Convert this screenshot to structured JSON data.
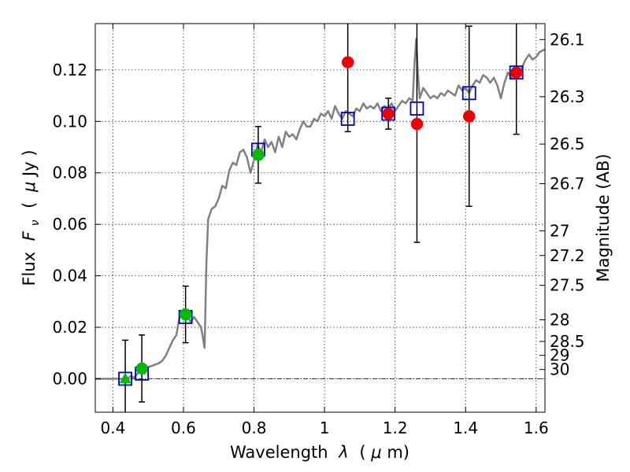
{
  "chart_data": {
    "type": "scatter",
    "xlabel_parts": [
      "Wavelength",
      "λ",
      "(",
      "μ",
      "m)"
    ],
    "ylabel_parts": [
      "Flux",
      "F",
      "ν",
      "(",
      "μ",
      "Jy )"
    ],
    "y2label": "Magnitude (AB)",
    "xlim": [
      0.35,
      1.625
    ],
    "ylim": [
      -0.013,
      0.138
    ],
    "grid": true,
    "x_ticks": [
      {
        "value": 0.4,
        "label": "0.4"
      },
      {
        "value": 0.6,
        "label": "0.6"
      },
      {
        "value": 0.8,
        "label": "0.8"
      },
      {
        "value": 1.0,
        "label": "1"
      },
      {
        "value": 1.2,
        "label": "1.2"
      },
      {
        "value": 1.4,
        "label": "1.4"
      },
      {
        "value": 1.6,
        "label": "1.6"
      }
    ],
    "y_ticks": [
      {
        "value": 0.0,
        "label": "0.00"
      },
      {
        "value": 0.02,
        "label": "0.02"
      },
      {
        "value": 0.04,
        "label": "0.04"
      },
      {
        "value": 0.06,
        "label": "0.06"
      },
      {
        "value": 0.08,
        "label": "0.08"
      },
      {
        "value": 0.1,
        "label": "0.10"
      },
      {
        "value": 0.12,
        "label": "0.12"
      }
    ],
    "mag_ticks": [
      {
        "flux": 0.1318,
        "label": "26.1"
      },
      {
        "flux": 0.1096,
        "label": "26.3"
      },
      {
        "flux": 0.0912,
        "label": "26.5"
      },
      {
        "flux": 0.0758,
        "label": "26.7"
      },
      {
        "flux": 0.0575,
        "label": "27"
      },
      {
        "flux": 0.0479,
        "label": "27.2"
      },
      {
        "flux": 0.0363,
        "label": "27.5"
      },
      {
        "flux": 0.0229,
        "label": "28"
      },
      {
        "flux": 0.0145,
        "label": "28.5"
      },
      {
        "flux": 0.0091,
        "label": "29"
      },
      {
        "flux": 0.0036,
        "label": "30"
      }
    ],
    "sed_model": {
      "name": "model SED",
      "color": "#808080",
      "points": [
        [
          0.35,
          0.0
        ],
        [
          0.44,
          0.0
        ],
        [
          0.45,
          0.001
        ],
        [
          0.46,
          0.0005
        ],
        [
          0.47,
          0.002
        ],
        [
          0.48,
          0.0035
        ],
        [
          0.49,
          0.002
        ],
        [
          0.5,
          0.0045
        ],
        [
          0.51,
          0.005
        ],
        [
          0.52,
          0.0055
        ],
        [
          0.53,
          0.006
        ],
        [
          0.54,
          0.007
        ],
        [
          0.55,
          0.009
        ],
        [
          0.56,
          0.012
        ],
        [
          0.57,
          0.015
        ],
        [
          0.58,
          0.017
        ],
        [
          0.59,
          0.025
        ],
        [
          0.6,
          0.024
        ],
        [
          0.61,
          0.026
        ],
        [
          0.62,
          0.022
        ],
        [
          0.63,
          0.024
        ],
        [
          0.64,
          0.022
        ],
        [
          0.65,
          0.02
        ],
        [
          0.655,
          0.016
        ],
        [
          0.66,
          0.012
        ],
        [
          0.665,
          0.045
        ],
        [
          0.67,
          0.062
        ],
        [
          0.68,
          0.066
        ],
        [
          0.69,
          0.067
        ],
        [
          0.7,
          0.07
        ],
        [
          0.71,
          0.075
        ],
        [
          0.72,
          0.074
        ],
        [
          0.73,
          0.081
        ],
        [
          0.74,
          0.084
        ],
        [
          0.75,
          0.083
        ],
        [
          0.76,
          0.088
        ],
        [
          0.77,
          0.089
        ],
        [
          0.78,
          0.086
        ],
        [
          0.79,
          0.08
        ],
        [
          0.8,
          0.085
        ],
        [
          0.81,
          0.091
        ],
        [
          0.82,
          0.088
        ],
        [
          0.83,
          0.093
        ],
        [
          0.84,
          0.09
        ],
        [
          0.85,
          0.092
        ],
        [
          0.86,
          0.088
        ],
        [
          0.87,
          0.094
        ],
        [
          0.88,
          0.09
        ],
        [
          0.89,
          0.096
        ],
        [
          0.9,
          0.094
        ],
        [
          0.91,
          0.095
        ],
        [
          0.92,
          0.093
        ],
        [
          0.93,
          0.097
        ],
        [
          0.94,
          0.1
        ],
        [
          0.95,
          0.098
        ],
        [
          0.96,
          0.098
        ],
        [
          0.97,
          0.101
        ],
        [
          0.98,
          0.1
        ],
        [
          0.99,
          0.103
        ],
        [
          1.0,
          0.102
        ],
        [
          1.01,
          0.104
        ],
        [
          1.02,
          0.101
        ],
        [
          1.03,
          0.106
        ],
        [
          1.04,
          0.103
        ],
        [
          1.05,
          0.101
        ],
        [
          1.06,
          0.104
        ],
        [
          1.07,
          0.103
        ],
        [
          1.08,
          0.102
        ],
        [
          1.09,
          0.105
        ],
        [
          1.1,
          0.104
        ],
        [
          1.11,
          0.107
        ],
        [
          1.12,
          0.105
        ],
        [
          1.13,
          0.106
        ],
        [
          1.14,
          0.105
        ],
        [
          1.15,
          0.107
        ],
        [
          1.16,
          0.104
        ],
        [
          1.17,
          0.106
        ],
        [
          1.18,
          0.105
        ],
        [
          1.19,
          0.107
        ],
        [
          1.2,
          0.104
        ],
        [
          1.21,
          0.106
        ],
        [
          1.22,
          0.108
        ],
        [
          1.23,
          0.107
        ],
        [
          1.24,
          0.109
        ],
        [
          1.25,
          0.108
        ],
        [
          1.255,
          0.122
        ],
        [
          1.26,
          0.132
        ],
        [
          1.265,
          0.118
        ],
        [
          1.27,
          0.109
        ],
        [
          1.28,
          0.113
        ],
        [
          1.29,
          0.111
        ],
        [
          1.3,
          0.109
        ],
        [
          1.31,
          0.11
        ],
        [
          1.32,
          0.109
        ],
        [
          1.33,
          0.111
        ],
        [
          1.34,
          0.11
        ],
        [
          1.35,
          0.112
        ],
        [
          1.36,
          0.111
        ],
        [
          1.37,
          0.11
        ],
        [
          1.38,
          0.114
        ],
        [
          1.39,
          0.112
        ],
        [
          1.4,
          0.113
        ],
        [
          1.41,
          0.111
        ],
        [
          1.42,
          0.114
        ],
        [
          1.43,
          0.116
        ],
        [
          1.44,
          0.115
        ],
        [
          1.45,
          0.118
        ],
        [
          1.46,
          0.117
        ],
        [
          1.47,
          0.115
        ],
        [
          1.48,
          0.117
        ],
        [
          1.49,
          0.114
        ],
        [
          1.5,
          0.109
        ],
        [
          1.51,
          0.115
        ],
        [
          1.52,
          0.119
        ],
        [
          1.53,
          0.117
        ],
        [
          1.54,
          0.119
        ],
        [
          1.55,
          0.118
        ],
        [
          1.56,
          0.121
        ],
        [
          1.57,
          0.124
        ],
        [
          1.58,
          0.126
        ],
        [
          1.59,
          0.124
        ],
        [
          1.6,
          0.125
        ],
        [
          1.61,
          0.127
        ],
        [
          1.625,
          0.128
        ]
      ]
    },
    "model_photometry": {
      "name": "model band flux",
      "color": "#0000cc",
      "points": [
        [
          0.435,
          0.0
        ],
        [
          0.482,
          0.002
        ],
        [
          0.606,
          0.024
        ],
        [
          0.812,
          0.089
        ],
        [
          1.066,
          0.101
        ],
        [
          1.181,
          0.103
        ],
        [
          1.262,
          0.105
        ],
        [
          1.41,
          0.111
        ],
        [
          1.544,
          0.119
        ]
      ]
    },
    "observed": [
      {
        "x": 0.435,
        "y": 0.0,
        "err": 0.015,
        "marker": "triangle",
        "color": "#00bb00"
      },
      {
        "x": 0.482,
        "y": 0.004,
        "err": 0.013,
        "marker": "circle",
        "color": "#00bb00"
      },
      {
        "x": 0.606,
        "y": 0.025,
        "err": 0.011,
        "marker": "circle",
        "color": "#00bb00"
      },
      {
        "x": 0.812,
        "y": 0.087,
        "err": 0.011,
        "marker": "circle",
        "color": "#00bb00"
      },
      {
        "x": 1.066,
        "y": 0.123,
        "err": 0.027,
        "marker": "circle",
        "color": "#ee0000"
      },
      {
        "x": 1.181,
        "y": 0.103,
        "err": 0.006,
        "marker": "circle",
        "color": "#ee0000"
      },
      {
        "x": 1.262,
        "y": 0.099,
        "err": 0.046,
        "marker": "circle",
        "color": "#ee0000"
      },
      {
        "x": 1.41,
        "y": 0.102,
        "err": 0.035,
        "marker": "circle",
        "color": "#ee0000"
      },
      {
        "x": 1.544,
        "y": 0.119,
        "err": 0.024,
        "marker": "circle",
        "color": "#ee0000"
      }
    ]
  }
}
